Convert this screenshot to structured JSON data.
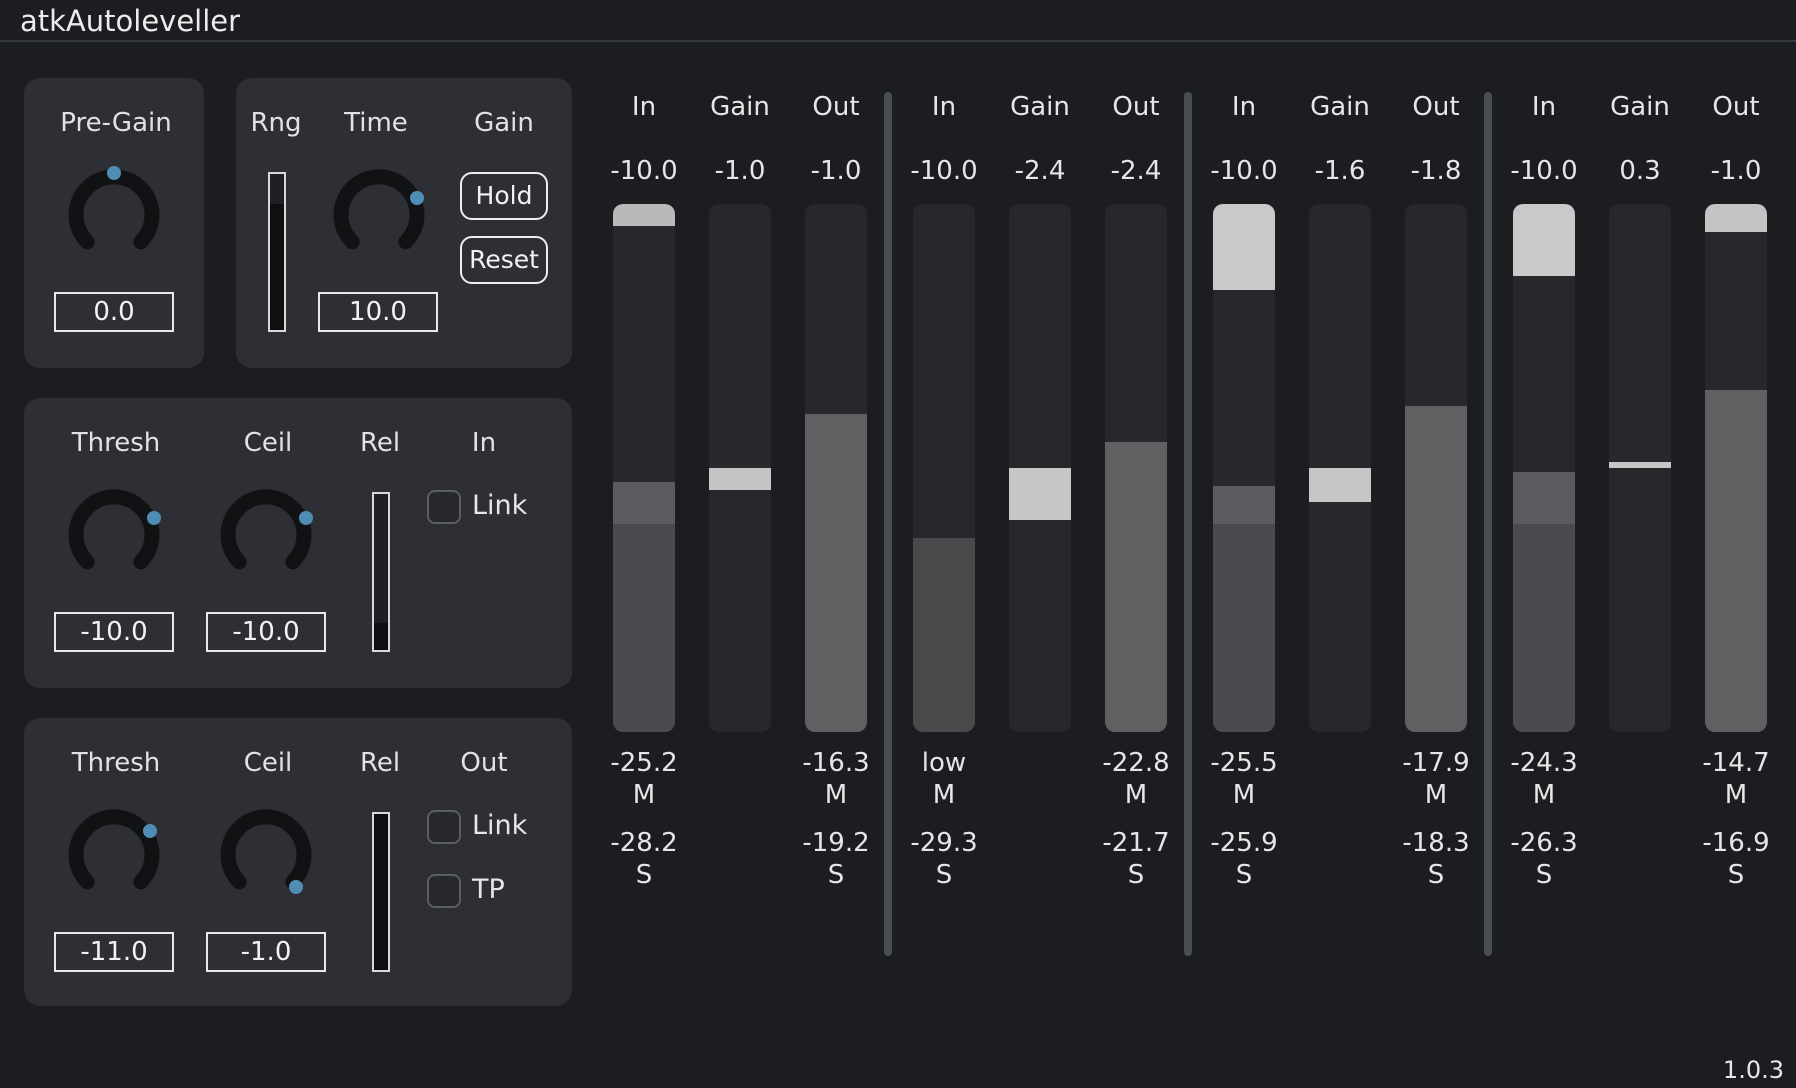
{
  "app": {
    "title": "atkAutoleveller",
    "version": "1.0.3"
  },
  "pregain": {
    "label": "Pre-Gain",
    "value": "0.0"
  },
  "time_panel": {
    "rng_label": "Rng",
    "time_label": "Time",
    "gain_label": "Gain",
    "time_value": "10.0",
    "hold_label": "Hold",
    "reset_label": "Reset",
    "rng_level": 0.81
  },
  "in_panel": {
    "thresh_label": "Thresh",
    "ceil_label": "Ceil",
    "rel_label": "Rel",
    "section_label": "In",
    "thresh_value": "-10.0",
    "ceil_value": "-10.0",
    "link_label": "Link",
    "link_checked": false,
    "rel_level": 0.17
  },
  "out_panel": {
    "thresh_label": "Thresh",
    "ceil_label": "Ceil",
    "rel_label": "Rel",
    "section_label": "Out",
    "thresh_value": "-11.0",
    "ceil_value": "-1.0",
    "link_label": "Link",
    "link_checked": false,
    "tp_label": "TP",
    "tp_checked": false,
    "rel_level": 1.0
  },
  "meters": [
    {
      "head": "In",
      "top": "-10.0",
      "bot1": "-25.2",
      "bot2": "M",
      "bot3": "-28.2",
      "bot4": "S"
    },
    {
      "head": "Gain",
      "top": "-1.0",
      "bot1": "",
      "bot2": "",
      "bot3": "",
      "bot4": ""
    },
    {
      "head": "Out",
      "top": "-1.0",
      "bot1": "-16.3",
      "bot2": "M",
      "bot3": "-19.2",
      "bot4": "S"
    },
    {
      "head": "In",
      "top": "-10.0",
      "bot1": "low",
      "bot2": "M",
      "bot3": "-29.3",
      "bot4": "S"
    },
    {
      "head": "Gain",
      "top": "-2.4",
      "bot1": "",
      "bot2": "",
      "bot3": "",
      "bot4": ""
    },
    {
      "head": "Out",
      "top": "-2.4",
      "bot1": "-22.8",
      "bot2": "M",
      "bot3": "-21.7",
      "bot4": "S"
    },
    {
      "head": "In",
      "top": "-10.0",
      "bot1": "-25.5",
      "bot2": "M",
      "bot3": "-25.9",
      "bot4": "S"
    },
    {
      "head": "Gain",
      "top": "-1.6",
      "bot1": "",
      "bot2": "",
      "bot3": "",
      "bot4": ""
    },
    {
      "head": "Out",
      "top": "-1.8",
      "bot1": "-17.9",
      "bot2": "M",
      "bot3": "-18.3",
      "bot4": "S"
    },
    {
      "head": "In",
      "top": "-10.0",
      "bot1": "-24.3",
      "bot2": "M",
      "bot3": "-26.3",
      "bot4": "S"
    },
    {
      "head": "Gain",
      "top": "0.3",
      "bot1": "",
      "bot2": "",
      "bot3": "",
      "bot4": ""
    },
    {
      "head": "Out",
      "top": "-1.0",
      "bot1": "-14.7",
      "bot2": "M",
      "bot3": "-16.9",
      "bot4": "S"
    }
  ]
}
